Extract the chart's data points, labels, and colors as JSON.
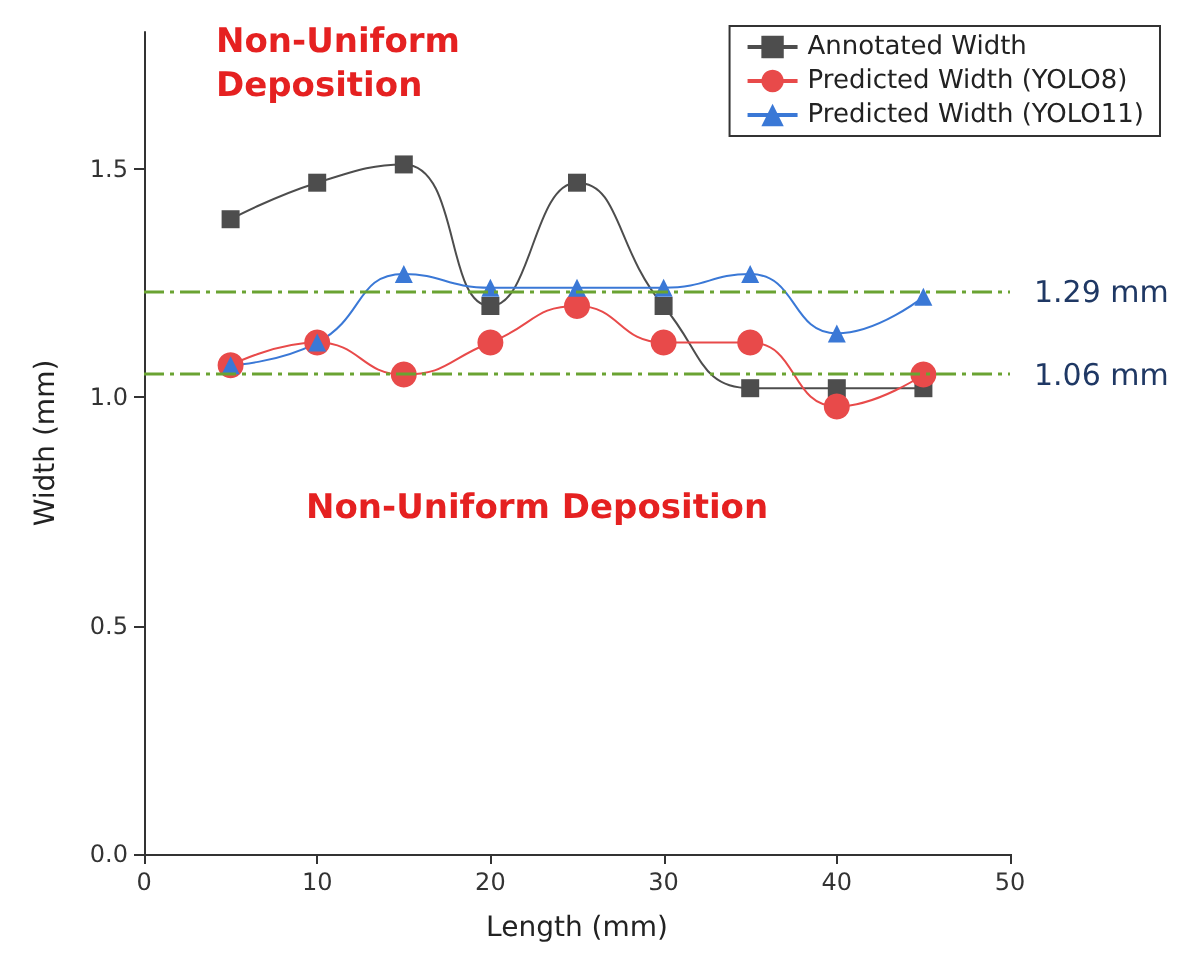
{
  "chart_data": {
    "type": "line",
    "xlabel": "Length (mm)",
    "ylabel": "Width (mm)",
    "x": [
      5,
      10,
      15,
      20,
      25,
      30,
      35,
      40,
      45
    ],
    "series": [
      {
        "name": "Annotated Width",
        "color": "#4d4d4d",
        "marker": "square",
        "values": [
          1.39,
          1.47,
          1.51,
          1.2,
          1.47,
          1.2,
          1.02,
          1.02,
          1.02
        ]
      },
      {
        "name": "Predicted Width (YOLO8)",
        "color": "#e84a4a",
        "marker": "circle",
        "values": [
          1.07,
          1.12,
          1.05,
          1.12,
          1.2,
          1.12,
          1.12,
          0.98,
          1.05
        ]
      },
      {
        "name": "Predicted Width (YOLO11)",
        "color": "#3a78d6",
        "marker": "triangle",
        "values": [
          1.07,
          1.12,
          1.27,
          1.24,
          1.24,
          1.24,
          1.27,
          1.14,
          1.22
        ]
      }
    ],
    "xlim": [
      0,
      50
    ],
    "xticks": [
      0,
      10,
      20,
      30,
      40,
      50
    ],
    "ylim": [
      0,
      1.8
    ],
    "yticks": [
      {
        "value": 0,
        "label": "0.0"
      },
      {
        "value": 0.5,
        "label": "0.5"
      },
      {
        "value": 1,
        "label": "1.0"
      },
      {
        "value": 1.5,
        "label": "1.5"
      }
    ],
    "ref_lines": [
      {
        "axis": "y",
        "value": 1.23,
        "label": "1.29 mm",
        "color": "#6aa332"
      },
      {
        "axis": "y",
        "value": 1.05,
        "label": "1.06 mm",
        "color": "#6aa332"
      }
    ],
    "annotations": [
      "Non-Uniform Deposition",
      "Non-Uniform Deposition"
    ],
    "legend": "top right",
    "grid": false
  }
}
